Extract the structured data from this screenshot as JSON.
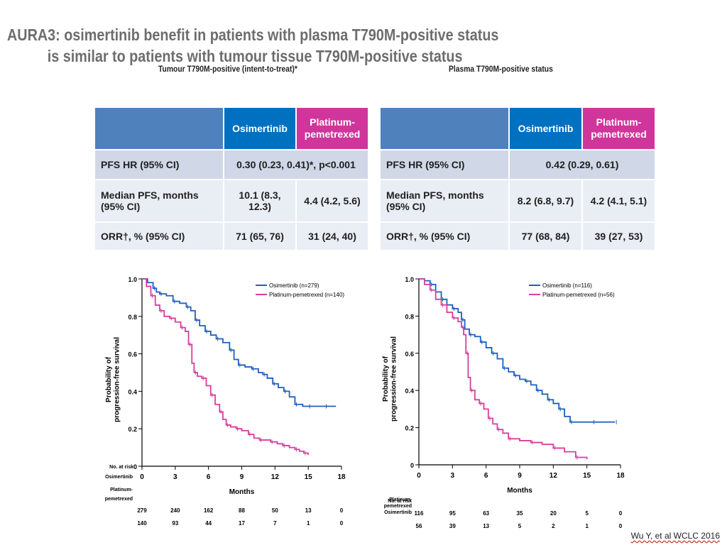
{
  "title": {
    "line1": "AURA3: osimertinib benefit in patients with plasma T790M-positive status",
    "line2": "is similar to patients with tumour tissue T790M-positive status"
  },
  "credit": "Wu Y, et al WCLC 2016",
  "panels": [
    {
      "heading": "Tumour T790M-positive (intent-to-treat)*",
      "table": {
        "col_osi": "Osimertinib",
        "col_plat": "Platinum-pemetrexed",
        "rows": [
          {
            "label": "PFS HR (95% CI)",
            "merged": "0.30 (0.23, 0.41)*, p<0.001"
          },
          {
            "label": "Median PFS, months (95% CI)",
            "osi": "10.1 (8.3, 12.3)",
            "plat": "4.4 (4.2, 5.6)"
          },
          {
            "label": "ORR†, % (95% CI)",
            "osi": "71 (65, 76)",
            "plat": "31 (24, 40)"
          }
        ]
      }
    },
    {
      "heading": "Plasma T790M-positive status",
      "table": {
        "col_osi": "Osimertinib",
        "col_plat": "Platinum-pemetrexed",
        "rows": [
          {
            "label": "PFS HR (95% CI)",
            "merged": "0.42 (0.29, 0.61)"
          },
          {
            "label": "Median PFS, months (95% CI)",
            "osi": "8.2 (6.8, 9.7)",
            "plat": "4.2 (4.1, 5.1)"
          },
          {
            "label": "ORR†, % (95% CI)",
            "osi": "77 (68, 84)",
            "plat": "39 (27, 53)"
          }
        ]
      }
    }
  ],
  "chart_data": [
    {
      "type": "line",
      "title": "",
      "xlabel": "Months",
      "ylabel": "Probability of progression-free survival",
      "xlim": [
        0,
        18
      ],
      "ylim": [
        0,
        1
      ],
      "xticks": [
        0,
        3,
        6,
        9,
        12,
        15,
        18
      ],
      "yticks": [
        0,
        0.2,
        0.4,
        0.6,
        0.8,
        1.0
      ],
      "colors": {
        "osimertinib": "#1f5fbf",
        "platinum": "#d63f9e"
      },
      "series": [
        {
          "name": "Osimertinib (n=279)",
          "x": [
            0,
            0.5,
            1.0,
            1.3,
            1.6,
            2.2,
            2.8,
            3.4,
            4.0,
            4.4,
            4.8,
            5.2,
            5.7,
            6.2,
            6.7,
            7.3,
            7.9,
            8.3,
            8.7,
            9.3,
            9.9,
            10.5,
            10.9,
            11.3,
            11.8,
            12.3,
            12.8,
            13.3,
            13.8,
            14.5,
            15.0,
            15.7,
            16.5,
            17.5
          ],
          "y": [
            1.0,
            0.98,
            0.95,
            0.93,
            0.92,
            0.91,
            0.88,
            0.87,
            0.85,
            0.83,
            0.78,
            0.75,
            0.72,
            0.7,
            0.68,
            0.66,
            0.62,
            0.57,
            0.54,
            0.53,
            0.52,
            0.5,
            0.49,
            0.47,
            0.44,
            0.42,
            0.4,
            0.37,
            0.33,
            0.32,
            0.32,
            0.32,
            0.32,
            0.32
          ]
        },
        {
          "name": "Platinum-pemetrexed (n=140)",
          "x": [
            0,
            0.4,
            0.8,
            1.2,
            1.6,
            2.0,
            2.5,
            3.0,
            3.5,
            3.9,
            4.2,
            4.5,
            4.7,
            5.0,
            5.4,
            5.8,
            6.2,
            6.6,
            7.0,
            7.3,
            7.6,
            8.0,
            8.5,
            9.0,
            9.6,
            10.1,
            10.6,
            11.1,
            11.6,
            12.2,
            12.7,
            13.3,
            13.8,
            14.2,
            14.6,
            15.0
          ],
          "y": [
            1.0,
            0.96,
            0.91,
            0.86,
            0.83,
            0.8,
            0.79,
            0.77,
            0.74,
            0.72,
            0.65,
            0.55,
            0.5,
            0.48,
            0.47,
            0.43,
            0.38,
            0.33,
            0.29,
            0.25,
            0.22,
            0.21,
            0.2,
            0.19,
            0.17,
            0.15,
            0.14,
            0.14,
            0.13,
            0.12,
            0.11,
            0.1,
            0.09,
            0.08,
            0.07,
            0.06
          ]
        }
      ],
      "at_risk": {
        "heading": "No. at risk",
        "rows": [
          {
            "label": "Osimertinib",
            "values": [
              "279",
              "240",
              "162",
              "88",
              "50",
              "13",
              "0"
            ]
          },
          {
            "label": "Platinum-pemetrexed",
            "values": [
              "140",
              "93",
              "44",
              "17",
              "7",
              "1",
              "0"
            ]
          }
        ]
      }
    },
    {
      "type": "line",
      "title": "",
      "xlabel": "Months",
      "ylabel": "Probability of progression-free survival",
      "xlim": [
        0,
        18
      ],
      "ylim": [
        0,
        1
      ],
      "xticks": [
        0,
        3,
        6,
        9,
        12,
        15,
        18
      ],
      "yticks": [
        0,
        0.2,
        0.4,
        0.6,
        0.8,
        1.0
      ],
      "colors": {
        "osimertinib": "#1f5fbf",
        "platinum": "#d63f9e"
      },
      "series": [
        {
          "name": "Osimertinib (n=116)",
          "x": [
            0,
            0.5,
            1.0,
            1.5,
            2.0,
            2.5,
            3.0,
            3.5,
            3.8,
            4.1,
            4.5,
            5.0,
            5.5,
            6.0,
            6.5,
            7.0,
            7.5,
            8.0,
            8.5,
            9.0,
            9.5,
            10.0,
            10.5,
            11.0,
            11.5,
            12.0,
            12.5,
            13.0,
            13.5,
            14.5,
            15.5,
            16.5,
            17.5
          ],
          "y": [
            1.0,
            0.99,
            0.97,
            0.93,
            0.89,
            0.86,
            0.84,
            0.82,
            0.78,
            0.73,
            0.7,
            0.69,
            0.66,
            0.63,
            0.6,
            0.57,
            0.52,
            0.5,
            0.48,
            0.46,
            0.45,
            0.43,
            0.4,
            0.38,
            0.35,
            0.33,
            0.3,
            0.26,
            0.23,
            0.23,
            0.23,
            0.23,
            0.23
          ]
        },
        {
          "name": "Platinum-pemetrexed (n=56)",
          "x": [
            0,
            0.5,
            1.0,
            1.5,
            2.0,
            2.5,
            3.0,
            3.5,
            3.8,
            4.0,
            4.2,
            4.4,
            4.6,
            5.0,
            5.4,
            5.8,
            6.2,
            6.6,
            7.0,
            7.5,
            8.0,
            9.0,
            10.0,
            11.0,
            12.0,
            13.0,
            14.0,
            15.0
          ],
          "y": [
            1.0,
            0.97,
            0.94,
            0.89,
            0.86,
            0.82,
            0.79,
            0.77,
            0.74,
            0.7,
            0.6,
            0.47,
            0.4,
            0.35,
            0.33,
            0.3,
            0.25,
            0.22,
            0.19,
            0.17,
            0.14,
            0.13,
            0.12,
            0.11,
            0.09,
            0.07,
            0.04,
            0.03
          ]
        }
      ],
      "at_risk": {
        "heading": "No. at risk",
        "rows": [
          {
            "label": "Osimertinib",
            "values": [
              "116",
              "95",
              "63",
              "35",
              "20",
              "5",
              "0"
            ]
          },
          {
            "label": "Platinum-pemetrexed",
            "values": [
              "56",
              "39",
              "13",
              "5",
              "2",
              "1",
              "0"
            ]
          }
        ]
      }
    }
  ]
}
